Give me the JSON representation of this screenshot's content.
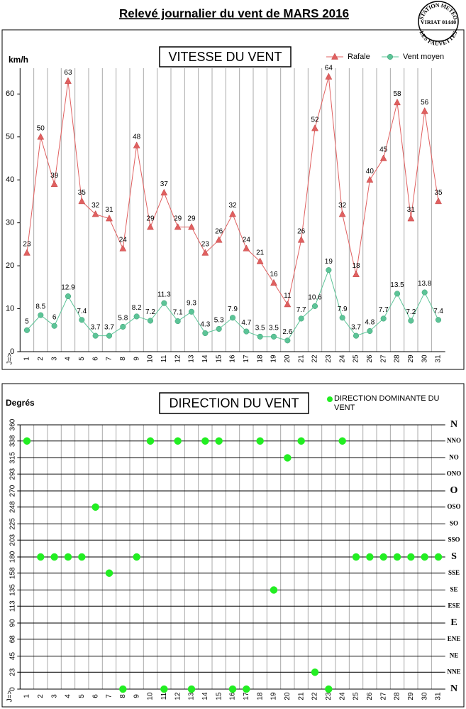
{
  "header": {
    "title": "Relevé journalier du vent de MARS 2016",
    "stamp": [
      "STATION METEO",
      "VIRIAT 01440",
      "LES FAUVETTES"
    ]
  },
  "chart_data": [
    {
      "type": "line",
      "title": "VITESSE DU VENT",
      "ylabel": "km/h",
      "xlabel": "J=>",
      "categories": [
        "1",
        "2",
        "3",
        "4",
        "5",
        "6",
        "7",
        "8",
        "9",
        "10",
        "11",
        "12",
        "13",
        "14",
        "15",
        "16",
        "17",
        "18",
        "19",
        "20",
        "21",
        "22",
        "23",
        "24",
        "25",
        "26",
        "27",
        "28",
        "29",
        "30",
        "31"
      ],
      "series": [
        {
          "name": "Rafale",
          "color": "#e06060",
          "marker": "triangle",
          "values": [
            23,
            50,
            39,
            63,
            35,
            32,
            31,
            24,
            48,
            29,
            37,
            29,
            29,
            23,
            26,
            32,
            24,
            21,
            16,
            11,
            26,
            52,
            64,
            32,
            18,
            40,
            45,
            58,
            31,
            56,
            35
          ]
        },
        {
          "name": "Vent moyen",
          "color": "#5cc497",
          "marker": "circle",
          "values": [
            5,
            8.5,
            6,
            12.9,
            7.4,
            3.7,
            3.7,
            5.8,
            8.2,
            7.2,
            11.3,
            7.1,
            9.3,
            4.3,
            5.3,
            7.9,
            4.7,
            3.5,
            3.5,
            2.6,
            7.7,
            10.6,
            19,
            7.9,
            3.7,
            4.8,
            7.7,
            13.5,
            7.2,
            13.8,
            7.4
          ]
        }
      ],
      "ylim": [
        0,
        66
      ],
      "yticks": [
        0,
        10,
        20,
        30,
        40,
        50,
        60
      ],
      "grid": false,
      "legend": "top-right"
    },
    {
      "type": "scatter",
      "title": "DIRECTION DU VENT",
      "ylabel": "Degrés",
      "xlabel": "J=>",
      "categories": [
        "1",
        "2",
        "3",
        "4",
        "5",
        "6",
        "7",
        "8",
        "9",
        "10",
        "11",
        "12",
        "13",
        "14",
        "15",
        "16",
        "17",
        "18",
        "19",
        "20",
        "21",
        "22",
        "23",
        "24",
        "25",
        "26",
        "27",
        "28",
        "29",
        "30",
        "31"
      ],
      "series": [
        {
          "name": "DIRECTION DOMINANTE DU VENT",
          "color": "#22ee22",
          "values": [
            338,
            180,
            180,
            180,
            180,
            248,
            158,
            0,
            180,
            338,
            0,
            338,
            0,
            338,
            338,
            0,
            0,
            338,
            135,
            315,
            338,
            23,
            0,
            338,
            180,
            180,
            180,
            180,
            180,
            180,
            180
          ]
        }
      ],
      "ylim": [
        0,
        360
      ],
      "yticks": [
        0,
        23,
        45,
        68,
        90,
        113,
        135,
        158,
        180,
        203,
        225,
        248,
        270,
        293,
        315,
        338,
        360
      ],
      "y2lim": [
        0,
        360
      ],
      "y2ticks": [
        {
          "value": 0,
          "label": "N"
        },
        {
          "value": 23,
          "label": "NNE"
        },
        {
          "value": 45,
          "label": "NE"
        },
        {
          "value": 68,
          "label": "ENE"
        },
        {
          "value": 90,
          "label": "E"
        },
        {
          "value": 113,
          "label": "ESE"
        },
        {
          "value": 135,
          "label": "SE"
        },
        {
          "value": 158,
          "label": "SSE"
        },
        {
          "value": 180,
          "label": "S"
        },
        {
          "value": 203,
          "label": "SSO"
        },
        {
          "value": 225,
          "label": "SO"
        },
        {
          "value": 248,
          "label": "OSO"
        },
        {
          "value": 270,
          "label": "O"
        },
        {
          "value": 293,
          "label": "ONO"
        },
        {
          "value": 315,
          "label": "NO"
        },
        {
          "value": 338,
          "label": "NNO"
        },
        {
          "value": 360,
          "label": "N"
        }
      ],
      "grid": true,
      "legend": "top-right"
    }
  ]
}
